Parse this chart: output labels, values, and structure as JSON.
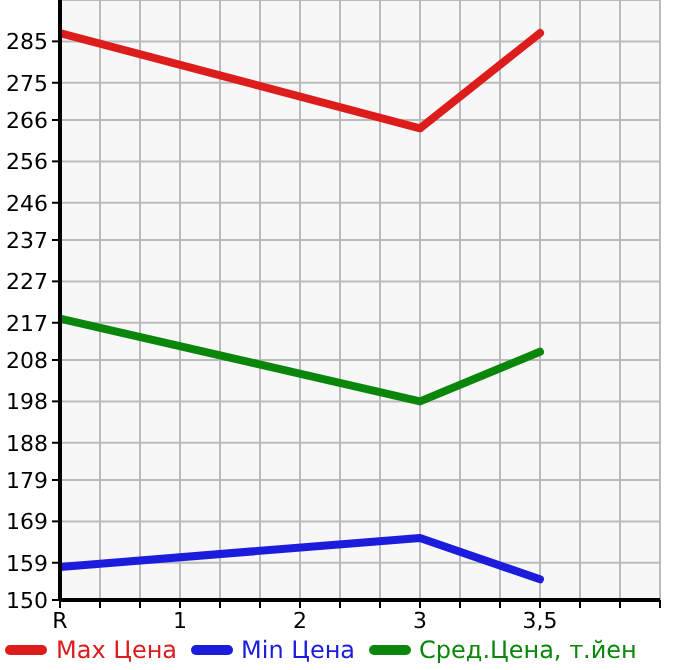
{
  "chart_data": {
    "type": "line",
    "categories": [
      "R",
      "1",
      "2",
      "3",
      "3,5"
    ],
    "series": [
      {
        "name": "Max Цена",
        "color": "#dd1c1c",
        "values": [
          287,
          null,
          null,
          264,
          287
        ]
      },
      {
        "name": "Min Цена",
        "color": "#1c1cdd",
        "values": [
          158,
          null,
          null,
          165,
          155
        ]
      },
      {
        "name": "Сред.Цена, т.йен",
        "color": "#0a870a",
        "values": [
          218,
          null,
          null,
          198,
          210
        ]
      }
    ],
    "ylim": [
      150,
      295
    ],
    "yticks": [
      150,
      159,
      169,
      179,
      188,
      198,
      208,
      217,
      227,
      237,
      246,
      256,
      266,
      275,
      285
    ],
    "grid": true,
    "legend": "bottom",
    "marker": "none",
    "line_style": "solid"
  }
}
